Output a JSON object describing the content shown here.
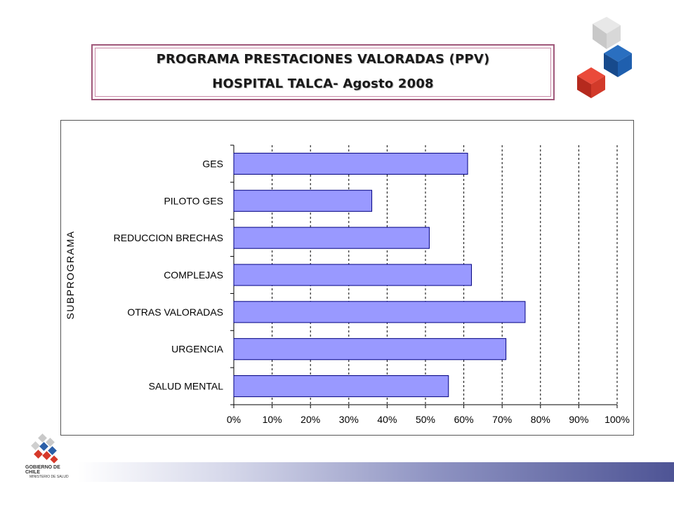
{
  "header": {
    "title_line1": "PROGRAMA PRESTACIONES VALORADAS (PPV)",
    "title_line2": "HOSPITAL TALCA- Agosto 2008"
  },
  "footer": {
    "org_name": "GOBIERNO DE CHILE",
    "ministry": "MINISTERIO DE SALUD"
  },
  "colors": {
    "bar_fill": "#9999ff",
    "bar_stroke": "#000080",
    "border_accent": "#a0587a",
    "band_dark": "#4e5495"
  },
  "chart_data": {
    "type": "bar",
    "orientation": "horizontal",
    "title": "",
    "xlabel": "",
    "ylabel": "SUBPROGRAMA",
    "categories": [
      "GES",
      "PILOTO GES",
      "REDUCCION BRECHAS",
      "COMPLEJAS",
      "OTRAS VALORADAS",
      "URGENCIA",
      "SALUD MENTAL"
    ],
    "values": [
      0.61,
      0.36,
      0.51,
      0.62,
      0.76,
      0.71,
      0.56
    ],
    "xlim": [
      0,
      1
    ],
    "x_ticks": [
      "0%",
      "10%",
      "20%",
      "30%",
      "40%",
      "50%",
      "60%",
      "70%",
      "80%",
      "90%",
      "100%"
    ],
    "grid": "vertical dashed",
    "legend": "none"
  }
}
